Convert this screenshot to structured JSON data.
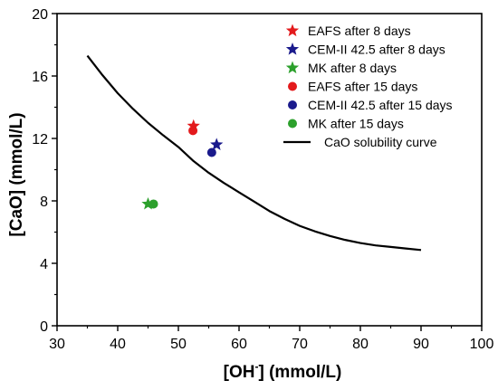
{
  "chart_data": {
    "type": "scatter",
    "title": "",
    "xlabel": "[OH-] (mmol/L)",
    "xlabel_main": "[OH",
    "xlabel_sup": "-",
    "xlabel_tail": "] (mmol/L)",
    "ylabel": "[CaO] (mmol/L)",
    "xlim": [
      30,
      100
    ],
    "ylim": [
      0,
      20
    ],
    "xticks": [
      "30",
      "40",
      "50",
      "60",
      "70",
      "80",
      "90",
      "100"
    ],
    "yticks": [
      "0",
      "4",
      "8",
      "12",
      "16",
      "20"
    ],
    "grid": false,
    "legend_position": "top-right",
    "series": [
      {
        "name": "EAFS after 8 days",
        "marker": "star",
        "color": "#e31a1c",
        "points": [
          {
            "x": 52.5,
            "y": 12.8
          }
        ]
      },
      {
        "name": "CEM-II 42.5 after 8 days",
        "marker": "star",
        "color": "#1a1a8c",
        "points": [
          {
            "x": 56.3,
            "y": 11.6
          }
        ]
      },
      {
        "name": "MK after 8 days",
        "marker": "star",
        "color": "#2ca02c",
        "points": [
          {
            "x": 45.0,
            "y": 7.8
          }
        ]
      },
      {
        "name": "EAFS after 15 days",
        "marker": "circle",
        "color": "#e31a1c",
        "points": [
          {
            "x": 52.4,
            "y": 12.5
          }
        ]
      },
      {
        "name": "CEM-II 42.5 after 15 days",
        "marker": "circle",
        "color": "#1a1a8c",
        "points": [
          {
            "x": 55.5,
            "y": 11.1
          }
        ]
      },
      {
        "name": "MK after 15 days",
        "marker": "circle",
        "color": "#2ca02c",
        "points": [
          {
            "x": 45.9,
            "y": 7.8
          }
        ]
      },
      {
        "name": "CaO solubility curve",
        "marker": "line",
        "color": "#000000",
        "points": [
          {
            "x": 35,
            "y": 17.3
          },
          {
            "x": 37.5,
            "y": 16.05
          },
          {
            "x": 40,
            "y": 14.9
          },
          {
            "x": 42.5,
            "y": 13.9
          },
          {
            "x": 45,
            "y": 13.0
          },
          {
            "x": 47.5,
            "y": 12.2
          },
          {
            "x": 50,
            "y": 11.45
          },
          {
            "x": 52.5,
            "y": 10.55
          },
          {
            "x": 55,
            "y": 9.8
          },
          {
            "x": 57.5,
            "y": 9.15
          },
          {
            "x": 60,
            "y": 8.55
          },
          {
            "x": 62.5,
            "y": 7.95
          },
          {
            "x": 65,
            "y": 7.35
          },
          {
            "x": 67.5,
            "y": 6.85
          },
          {
            "x": 70,
            "y": 6.4
          },
          {
            "x": 72.5,
            "y": 6.05
          },
          {
            "x": 75,
            "y": 5.75
          },
          {
            "x": 77.5,
            "y": 5.5
          },
          {
            "x": 80,
            "y": 5.3
          },
          {
            "x": 82.5,
            "y": 5.15
          },
          {
            "x": 85,
            "y": 5.05
          },
          {
            "x": 87.5,
            "y": 4.95
          },
          {
            "x": 90,
            "y": 4.85
          }
        ]
      }
    ]
  }
}
